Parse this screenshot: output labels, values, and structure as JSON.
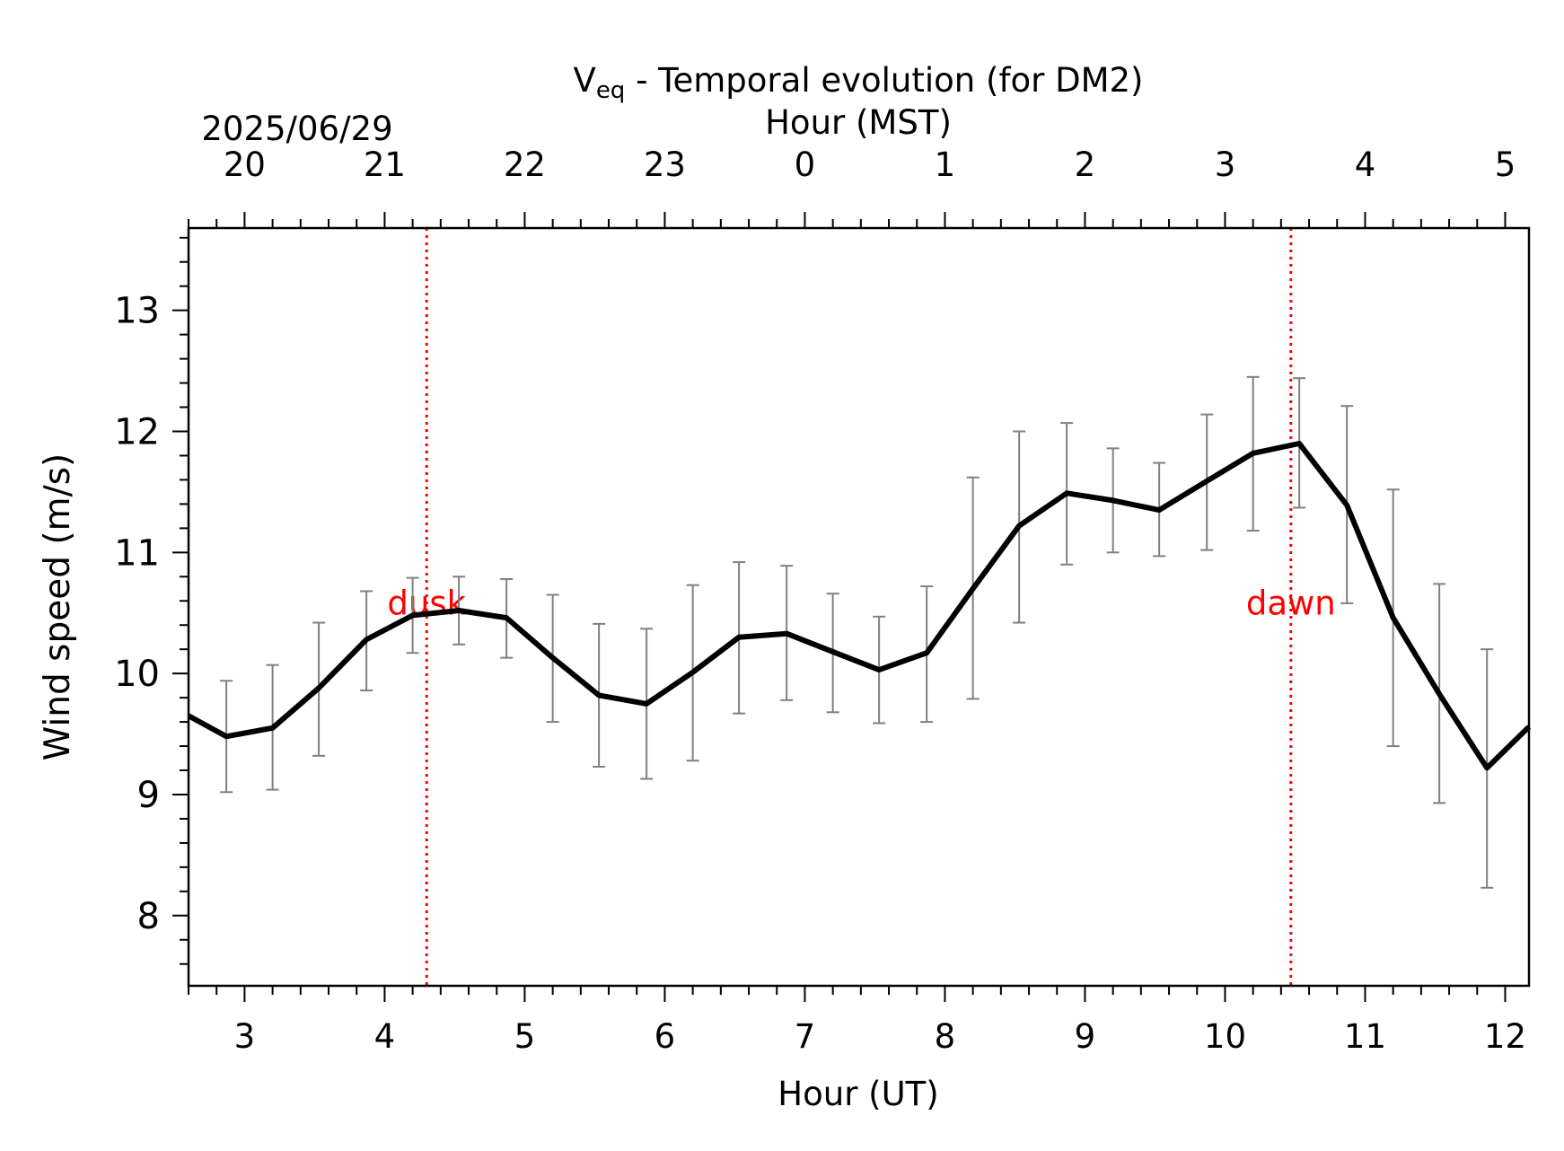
{
  "chart_data": {
    "type": "line",
    "title_main": "V",
    "title_sub": "eq",
    "title_rest": " - Temporal evolution (for DM2)",
    "date_label": "2025/06/29",
    "xlabel": "Hour (UT)",
    "xlabel_top": "Hour (MST)",
    "ylabel": "Wind speed (m/s)",
    "xlim": [
      2.6,
      12.17
    ],
    "ylim": [
      7.42,
      13.68
    ],
    "x_ticks": [
      3,
      4,
      5,
      6,
      7,
      8,
      9,
      10,
      11,
      12
    ],
    "x_tick_labels": [
      "3",
      "4",
      "5",
      "6",
      "7",
      "8",
      "9",
      "10",
      "11",
      "12"
    ],
    "top_ticks": [
      3,
      4,
      5,
      6,
      7,
      8,
      9,
      10,
      11,
      12
    ],
    "top_tick_labels": [
      "20",
      "21",
      "22",
      "23",
      "0",
      "1",
      "2",
      "3",
      "4",
      "5"
    ],
    "y_ticks": [
      8,
      9,
      10,
      11,
      12,
      13
    ],
    "y_tick_labels": [
      "8",
      "9",
      "10",
      "11",
      "12",
      "13"
    ],
    "series": [
      {
        "color": "#000000",
        "x": [
          2.6,
          2.87,
          3.2,
          3.53,
          3.87,
          4.2,
          4.53,
          4.87,
          5.2,
          5.53,
          5.87,
          6.2,
          6.53,
          6.87,
          7.2,
          7.53,
          7.87,
          8.2,
          8.53,
          8.87,
          9.2,
          9.53,
          9.87,
          10.2,
          10.53,
          10.87,
          11.2,
          11.53,
          11.87,
          12.17
        ],
        "y": [
          9.65,
          9.48,
          9.55,
          9.88,
          10.28,
          10.48,
          10.52,
          10.46,
          10.13,
          9.82,
          9.75,
          10.01,
          10.3,
          10.33,
          10.18,
          10.03,
          10.17,
          10.7,
          11.22,
          11.49,
          11.43,
          11.35,
          11.59,
          11.82,
          11.9,
          11.39,
          10.46,
          9.83,
          9.22,
          9.56
        ]
      }
    ],
    "error_bars": {
      "color": "#808080",
      "x": [
        2.87,
        3.2,
        3.53,
        3.87,
        4.2,
        4.53,
        4.87,
        5.2,
        5.53,
        5.87,
        6.2,
        6.53,
        6.87,
        7.2,
        7.53,
        7.87,
        8.2,
        8.53,
        8.87,
        9.2,
        9.53,
        9.87,
        10.2,
        10.53,
        10.87,
        11.2,
        11.53,
        11.87
      ],
      "low": [
        9.02,
        9.04,
        9.32,
        9.86,
        10.17,
        10.24,
        10.13,
        9.6,
        9.23,
        9.13,
        9.28,
        9.67,
        9.78,
        9.68,
        9.59,
        9.6,
        9.79,
        10.42,
        10.9,
        11.0,
        10.97,
        11.02,
        11.18,
        11.37,
        10.58,
        9.4,
        8.93,
        8.23
      ],
      "high": [
        9.94,
        10.07,
        10.42,
        10.68,
        10.79,
        10.8,
        10.78,
        10.65,
        10.41,
        10.37,
        10.73,
        10.92,
        10.89,
        10.66,
        10.47,
        10.72,
        11.62,
        12.0,
        12.07,
        11.86,
        11.74,
        12.14,
        12.45,
        12.44,
        12.21,
        11.52,
        10.74,
        10.2
      ]
    },
    "markers": [
      {
        "label": "dusk",
        "x": 4.3,
        "color": "#ff0000"
      },
      {
        "label": "dawn",
        "x": 10.47,
        "color": "#ff0000"
      }
    ],
    "grid": false,
    "legend": "none"
  }
}
